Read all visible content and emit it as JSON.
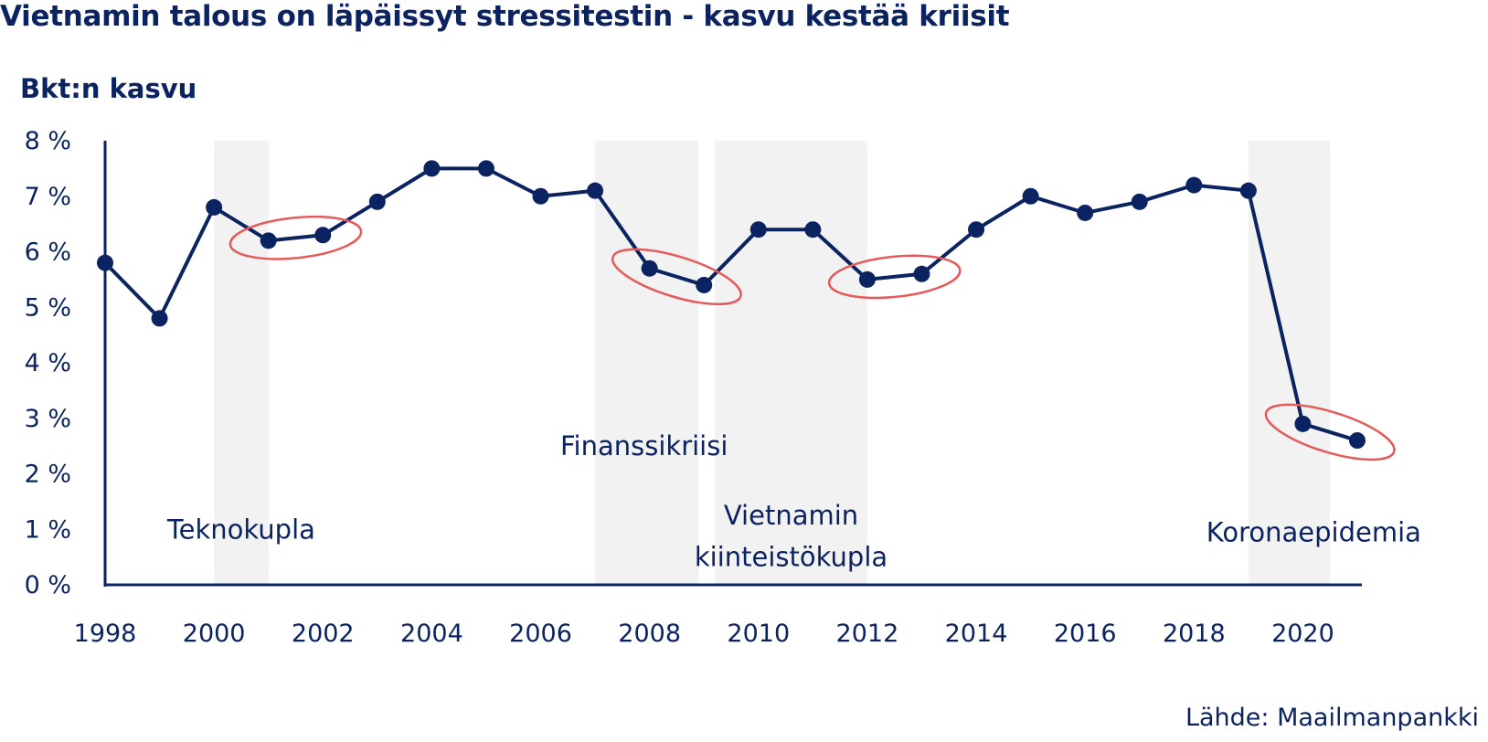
{
  "title": "Vietnamin talous on läpäissyt stressitestin - kasvu kestää kriisit",
  "ylabel": "Bkt:n kasvu",
  "source": "Lähde: Maailmanpankki",
  "colors": {
    "line": "#0b2360",
    "shade": "#f2f2f2",
    "highlight": "#e55a5a"
  },
  "chart_data": {
    "type": "line",
    "grid": false,
    "legend": "none",
    "xlim": [
      1998,
      2021
    ],
    "ylim": [
      0,
      8
    ],
    "x_ticks": [
      1998,
      2000,
      2002,
      2004,
      2006,
      2008,
      2010,
      2012,
      2014,
      2016,
      2018,
      2020
    ],
    "x_tick_labels": [
      "1998",
      "2000",
      "2002",
      "2004",
      "2006",
      "2008",
      "2010",
      "2012",
      "2014",
      "2016",
      "2018",
      "2020"
    ],
    "y_ticks": [
      0,
      1,
      2,
      3,
      4,
      5,
      6,
      7,
      8
    ],
    "y_tick_labels": [
      "0 %",
      "1 %",
      "2 %",
      "3 %",
      "4 %",
      "5 %",
      "6 %",
      "7 %",
      "8 %"
    ],
    "series": [
      {
        "x": [
          1998,
          1999,
          2000,
          2001,
          2002,
          2003,
          2004,
          2005,
          2006,
          2007,
          2008,
          2009,
          2010,
          2011,
          2012,
          2013,
          2014,
          2015,
          2016,
          2017,
          2018,
          2019,
          2020,
          2021
        ],
        "values": [
          5.8,
          4.8,
          6.8,
          6.2,
          6.3,
          6.9,
          7.5,
          7.5,
          7.0,
          7.1,
          5.7,
          5.4,
          6.4,
          6.4,
          5.5,
          5.6,
          6.4,
          7.0,
          6.7,
          6.9,
          7.2,
          7.1,
          2.9,
          2.6
        ]
      }
    ],
    "shaded_periods": [
      {
        "from": 2000,
        "to": 2001
      },
      {
        "from": 2007,
        "to": 2008.9
      },
      {
        "from": 2009.2,
        "to": 2012
      },
      {
        "from": 2019,
        "to": 2020.5
      }
    ],
    "highlights": [
      {
        "from": 2001,
        "to": 2002
      },
      {
        "from": 2008,
        "to": 2009
      },
      {
        "from": 2012,
        "to": 2013
      },
      {
        "from": 2020,
        "to": 2021
      }
    ],
    "annotations": [
      {
        "text": "Teknokupla",
        "x": 2000.5,
        "y": 1.0
      },
      {
        "text": "Finanssikriisi",
        "x": 2007.9,
        "y": 2.5
      },
      {
        "text": "Vietnamin",
        "x": 2010.6,
        "y": 1.25
      },
      {
        "text": "kiinteistökupla",
        "x": 2010.6,
        "y": 0.5
      },
      {
        "text": "Koronaepidemia",
        "x": 2020.2,
        "y": 0.95
      }
    ]
  }
}
